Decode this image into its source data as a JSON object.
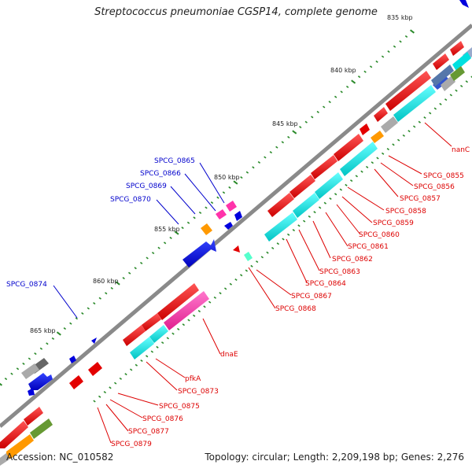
{
  "title": "Streptococcus pneumoniae CGSP14, complete genome",
  "accession_text": "Accession: NC_010582",
  "summary_text": "Topology: circular; Length: 2,209,198 bp; Genes: 2,276",
  "kbp_ticks": [
    "835 kbp",
    "840 kbp",
    "845 kbp",
    "850 kbp",
    "855 kbp",
    "860 kbp",
    "865 kbp"
  ],
  "top_gene_labels": [
    "SPCG_0865",
    "SPCG_0866",
    "SPCG_0869",
    "SPCG_0870",
    "SPCG_0874"
  ],
  "bottom_gene_labels": [
    "nanC",
    "SPCG_0855",
    "SPCG_0856",
    "SPCG_0857",
    "SPCG_0858",
    "SPCG_0859",
    "SPCG_0860",
    "SPCG_0861",
    "SPCG_0862",
    "SPCG_0863",
    "SPCG_0864",
    "SPCG_0867",
    "SPCG_0868",
    "dnaE",
    "pfkA",
    "SPCG_0873",
    "SPCG_0875",
    "SPCG_0876",
    "SPCG_0877",
    "SPCG_0879"
  ],
  "colors": {
    "forward_cds": "#0000dd",
    "reverse_cds": "#e30000",
    "cog_cyan": "#00e0e0",
    "cog_magenta": "#ff33aa",
    "cog_orange": "#ff9900",
    "cog_gray": "#999999",
    "cog_olive": "#669933",
    "cog_steelblue": "#5577aa",
    "backbone": "#888888",
    "tick": "#228822",
    "label_forward": "#0000cc",
    "label_reverse": "#dd0000"
  }
}
